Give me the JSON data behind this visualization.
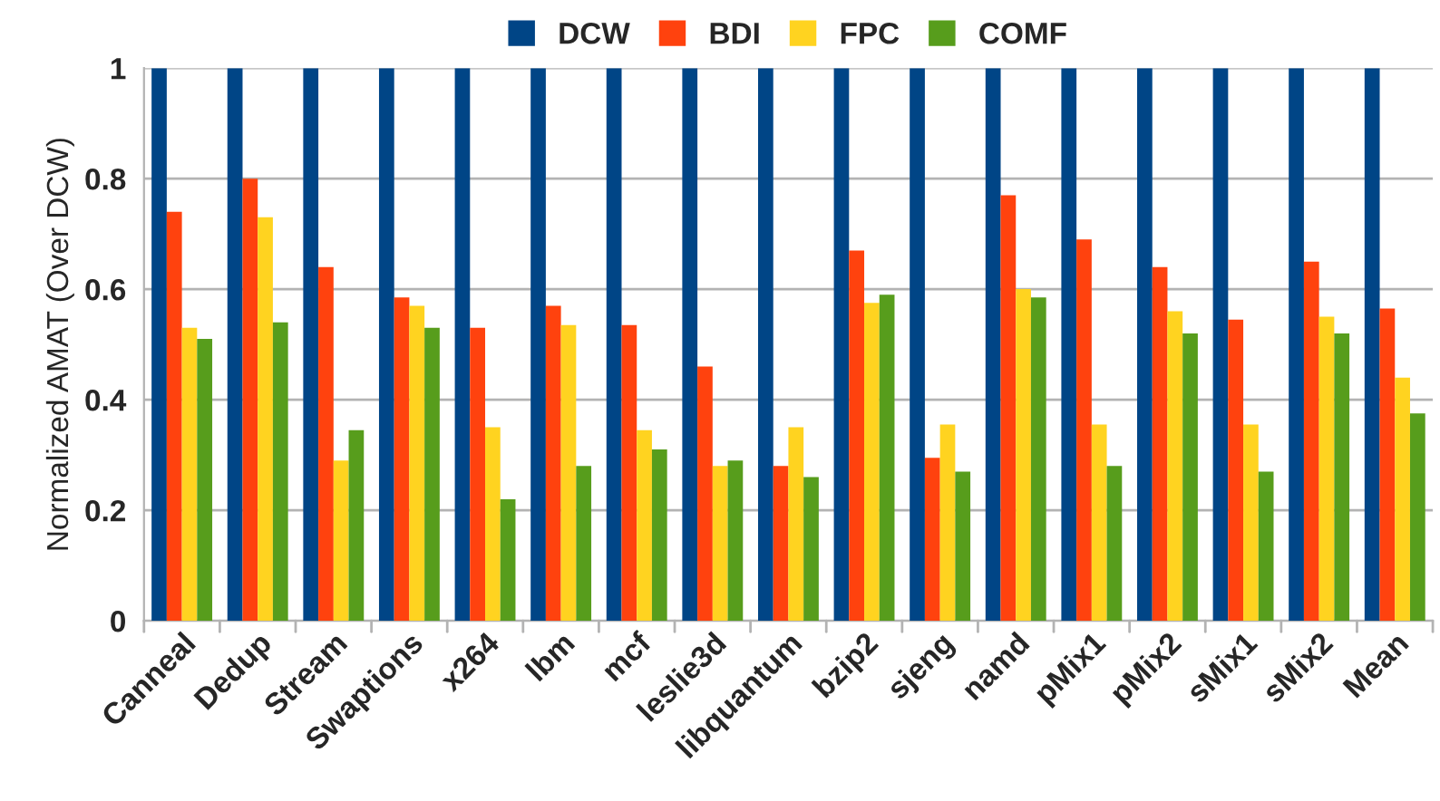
{
  "chart_data": {
    "type": "bar",
    "ylabel": "Normalized AMAT (Over DCW)",
    "categories": [
      "Canneal",
      "Dedup",
      "Stream",
      "Swaptions",
      "x264",
      "lbm",
      "mcf",
      "leslie3d",
      "libquantum",
      "bzip2",
      "sjeng",
      "namd",
      "pMix1",
      "pMix2",
      "sMix1",
      "sMix2",
      "Mean"
    ],
    "series": [
      {
        "name": "DCW",
        "color": "#004586",
        "values": [
          1,
          1,
          1,
          1,
          1,
          1,
          1,
          1,
          1,
          1,
          1,
          1,
          1,
          1,
          1,
          1,
          1
        ]
      },
      {
        "name": "BDI",
        "color": "#ff420e",
        "values": [
          0.74,
          0.8,
          0.64,
          0.585,
          0.53,
          0.57,
          0.535,
          0.46,
          0.28,
          0.67,
          0.295,
          0.77,
          0.69,
          0.64,
          0.545,
          0.65,
          0.565
        ]
      },
      {
        "name": "FPC",
        "color": "#ffd320",
        "values": [
          0.53,
          0.73,
          0.29,
          0.57,
          0.35,
          0.535,
          0.345,
          0.28,
          0.35,
          0.575,
          0.355,
          0.6,
          0.355,
          0.56,
          0.355,
          0.55,
          0.44
        ]
      },
      {
        "name": "COMF",
        "color": "#579d1c",
        "values": [
          0.51,
          0.54,
          0.345,
          0.53,
          0.22,
          0.28,
          0.31,
          0.29,
          0.26,
          0.59,
          0.27,
          0.585,
          0.28,
          0.52,
          0.27,
          0.52,
          0.375
        ]
      }
    ],
    "ylim": [
      0,
      1
    ],
    "yticks": [
      0,
      0.2,
      0.4,
      0.6,
      0.8,
      1
    ],
    "grid": "y",
    "legend": "top"
  }
}
